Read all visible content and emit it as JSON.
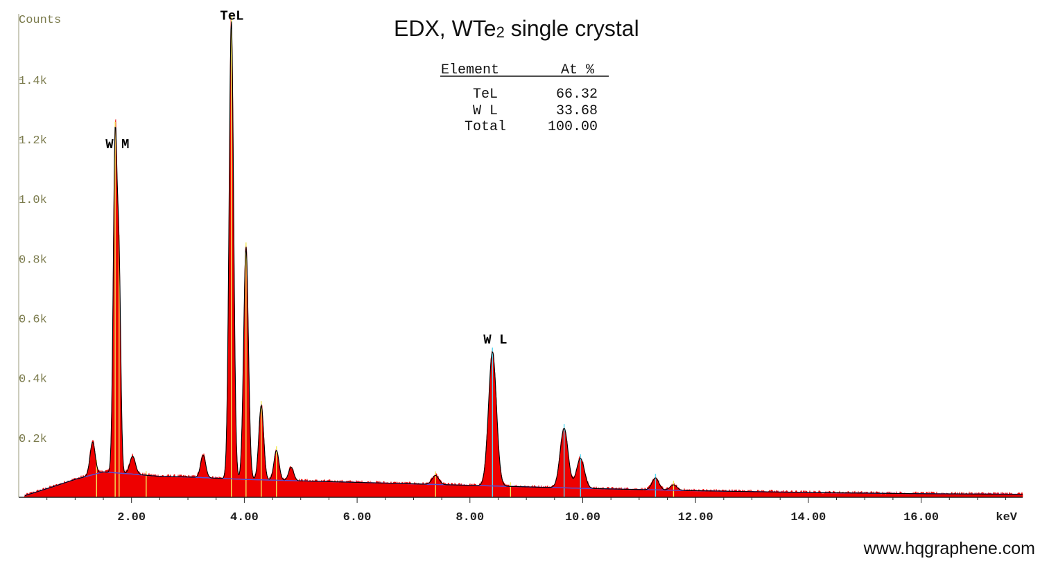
{
  "chart_data": {
    "type": "area",
    "title": "EDX, WTe",
    "title_sub": "2",
    "title_rest": " single crystal",
    "ylabel": "Counts",
    "xlabel": "keV",
    "xlim": [
      0.0,
      17.8
    ],
    "ylim": [
      0,
      1620
    ],
    "x_ticks": [
      2,
      4,
      6,
      8,
      10,
      12,
      14,
      16
    ],
    "x_tick_labels": [
      "2.00",
      "4.00",
      "6.00",
      "8.00",
      "10.00",
      "12.00",
      "14.00",
      "16.00"
    ],
    "y_ticks": [
      200,
      400,
      600,
      800,
      1000,
      1200,
      1400
    ],
    "y_tick_labels": [
      "0.2k",
      "0.4k",
      "0.6k",
      "0.8k",
      "1.0k",
      "1.2k",
      "1.4k"
    ],
    "colors": {
      "spectrum_fill": "#ee0000",
      "fit_line": "#000000",
      "background_line": "#5a4fd6",
      "marker_yellow": "#f2e85a",
      "marker_cyan": "#58d8f0",
      "axis": "#222222",
      "tick_label": "#7c7c4e"
    },
    "background": {
      "x": [
        0.1,
        0.6,
        1.0,
        1.5,
        2.0,
        2.5,
        3.0,
        4.0,
        6.0,
        8.0,
        10.0,
        12.0,
        14.0,
        16.0,
        17.8
      ],
      "y": [
        5,
        35,
        60,
        85,
        78,
        70,
        68,
        60,
        50,
        40,
        30,
        22,
        16,
        12,
        10
      ]
    },
    "peaks": [
      {
        "center": 1.31,
        "height": 110,
        "width": 0.045
      },
      {
        "center": 1.71,
        "height": 1120,
        "width": 0.034
      },
      {
        "center": 1.78,
        "height": 650,
        "width": 0.03
      },
      {
        "center": 2.02,
        "height": 60,
        "width": 0.05
      },
      {
        "center": 3.27,
        "height": 75,
        "width": 0.045
      },
      {
        "center": 3.77,
        "height": 1540,
        "width": 0.04
      },
      {
        "center": 4.03,
        "height": 780,
        "width": 0.042
      },
      {
        "center": 4.3,
        "height": 250,
        "width": 0.043
      },
      {
        "center": 4.57,
        "height": 100,
        "width": 0.045
      },
      {
        "center": 4.83,
        "height": 45,
        "width": 0.045
      },
      {
        "center": 7.39,
        "height": 30,
        "width": 0.06
      },
      {
        "center": 8.4,
        "height": 450,
        "width": 0.07
      },
      {
        "center": 9.67,
        "height": 200,
        "width": 0.07
      },
      {
        "center": 9.96,
        "height": 100,
        "width": 0.07
      },
      {
        "center": 11.29,
        "height": 40,
        "width": 0.06
      },
      {
        "center": 11.61,
        "height": 18,
        "width": 0.06
      }
    ],
    "marker_lines": [
      {
        "x": 1.38,
        "color": "yellow"
      },
      {
        "x": 1.71,
        "color": "yellow"
      },
      {
        "x": 1.78,
        "color": "yellow"
      },
      {
        "x": 2.26,
        "color": "yellow"
      },
      {
        "x": 3.77,
        "color": "yellow"
      },
      {
        "x": 4.03,
        "color": "yellow"
      },
      {
        "x": 4.3,
        "color": "yellow"
      },
      {
        "x": 4.57,
        "color": "yellow"
      },
      {
        "x": 7.39,
        "color": "yellow"
      },
      {
        "x": 8.4,
        "color": "cyan"
      },
      {
        "x": 8.72,
        "color": "yellow"
      },
      {
        "x": 9.67,
        "color": "cyan"
      },
      {
        "x": 9.96,
        "color": "cyan"
      },
      {
        "x": 11.29,
        "color": "cyan"
      },
      {
        "x": 11.61,
        "color": "yellow"
      }
    ],
    "peak_labels": [
      {
        "text": "W M",
        "x": 1.75,
        "y": 1170
      },
      {
        "text": "TeL",
        "x": 3.78,
        "y": 1600
      },
      {
        "text": "W L",
        "x": 8.45,
        "y": 515
      }
    ],
    "table": {
      "headers": [
        "Element",
        "At %"
      ],
      "rows": [
        [
          "TeL",
          "66.32"
        ],
        [
          "W L",
          "33.68"
        ],
        [
          "Total",
          "100.00"
        ]
      ]
    }
  },
  "watermark": "www.hqgraphene.com"
}
